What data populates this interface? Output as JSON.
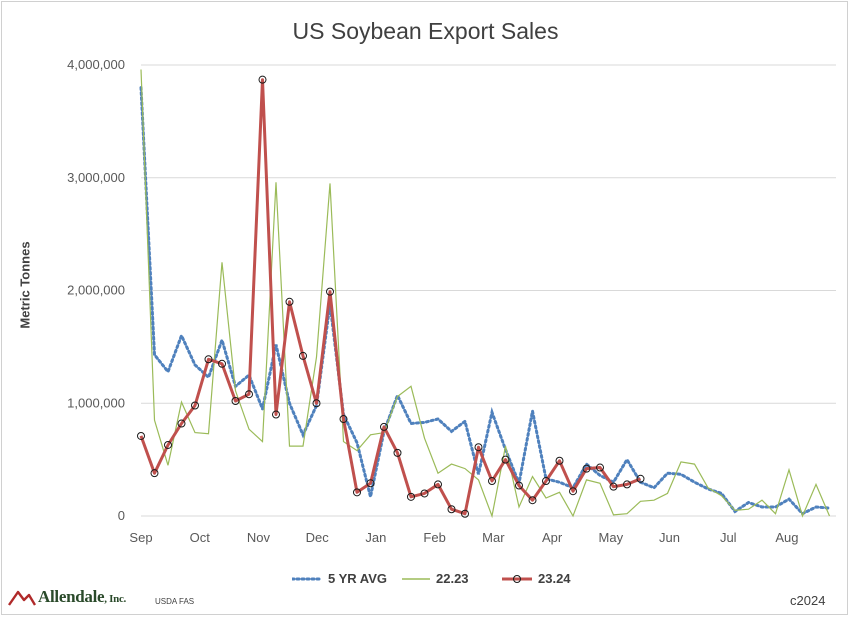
{
  "chart_data": {
    "type": "line",
    "title": "US Soybean Export Sales",
    "ylabel": "Metric Tonnes",
    "xlabel": "",
    "ylim": [
      0,
      4000000
    ],
    "yticks": [
      0,
      1000000,
      2000000,
      3000000,
      4000000
    ],
    "ytick_labels": [
      "0",
      "1,000,000",
      "2,000,000",
      "3,000,000",
      "4,000,000"
    ],
    "xtick_labels": [
      "Sep",
      "Oct",
      "Nov",
      "Dec",
      "Jan",
      "Feb",
      "Mar",
      "Apr",
      "May",
      "Jun",
      "Jul",
      "Aug"
    ],
    "weeks": 52,
    "grid": "horizontal",
    "legend_position": "bottom",
    "series": [
      {
        "name": "5 YR AVG",
        "style": "dotted",
        "color": "#4f81bd",
        "values": [
          3800000,
          1430000,
          1280000,
          1600000,
          1340000,
          1230000,
          1560000,
          1150000,
          1250000,
          950000,
          1520000,
          1000000,
          720000,
          980000,
          1880000,
          900000,
          650000,
          170000,
          750000,
          1070000,
          820000,
          830000,
          860000,
          750000,
          840000,
          370000,
          920000,
          590000,
          290000,
          930000,
          330000,
          300000,
          250000,
          460000,
          360000,
          300000,
          500000,
          300000,
          250000,
          380000,
          370000,
          300000,
          240000,
          200000,
          40000,
          120000,
          80000,
          80000,
          150000,
          20000,
          80000,
          70000
        ]
      },
      {
        "name": "22.23",
        "style": "solid",
        "color": "#9bbb59",
        "values": [
          3960000,
          850000,
          450000,
          1010000,
          740000,
          730000,
          2250000,
          1110000,
          770000,
          660000,
          2960000,
          620000,
          620000,
          1410000,
          2950000,
          660000,
          580000,
          720000,
          740000,
          1060000,
          1150000,
          690000,
          380000,
          460000,
          420000,
          320000,
          0,
          620000,
          80000,
          350000,
          160000,
          210000,
          0,
          320000,
          290000,
          10000,
          20000,
          130000,
          140000,
          200000,
          480000,
          460000,
          250000,
          180000,
          50000,
          60000,
          140000,
          20000,
          410000,
          0,
          280000,
          0
        ]
      },
      {
        "name": "23.24",
        "style": "solid-markers",
        "color": "#c0504d",
        "values": [
          710000,
          380000,
          630000,
          820000,
          980000,
          1390000,
          1350000,
          1020000,
          1080000,
          3870000,
          900000,
          1900000,
          1420000,
          1000000,
          1990000,
          860000,
          210000,
          290000,
          790000,
          560000,
          170000,
          200000,
          280000,
          60000,
          20000,
          610000,
          310000,
          500000,
          270000,
          140000,
          310000,
          490000,
          220000,
          420000,
          430000,
          260000,
          280000,
          330000
        ]
      }
    ]
  },
  "footer": {
    "brand": "Allendale",
    "brand_suffix": ", Inc.",
    "source": "USDA FAS",
    "copyright": "c2024"
  }
}
